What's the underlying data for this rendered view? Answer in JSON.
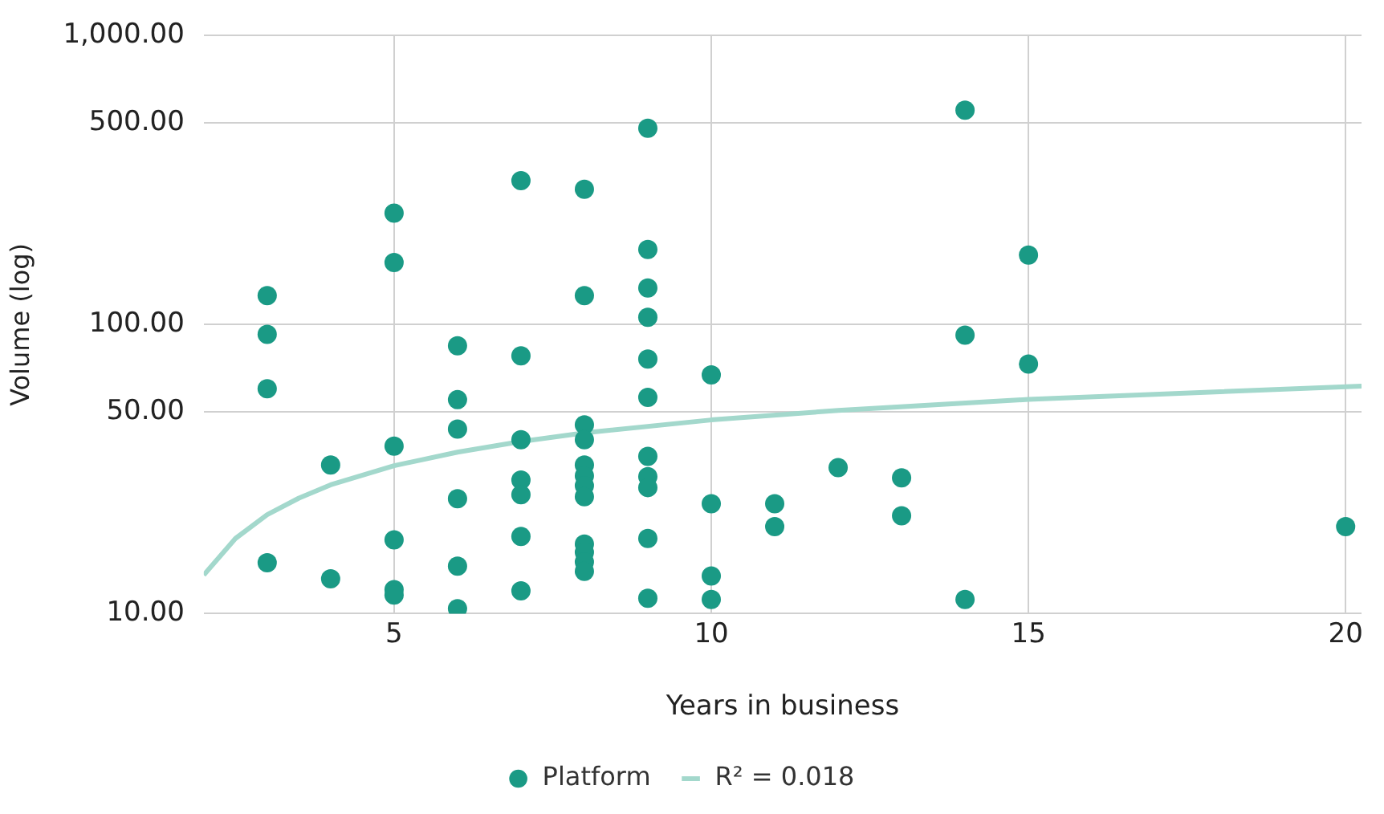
{
  "chart_data": {
    "type": "scatter",
    "xlabel": "Years in business",
    "ylabel": "Volume (log)",
    "log": "y",
    "grid": true,
    "legend": "bottom",
    "marker": "circle",
    "xlim": [
      2,
      20.25
    ],
    "xticks": [
      5,
      10,
      15,
      20
    ],
    "ylim": [
      10,
      1000
    ],
    "yticks": [
      {
        "value": 10,
        "label": "10.00"
      },
      {
        "value": 50,
        "label": "50.00"
      },
      {
        "value": 100,
        "label": "100.00"
      },
      {
        "value": 500,
        "label": "500.00"
      },
      {
        "value": 1000,
        "label": "1,000.00"
      }
    ],
    "series": [
      {
        "name": "Platform",
        "color": "#1a9a85",
        "x": [
          3,
          3,
          3,
          3,
          4,
          4,
          5,
          5,
          5,
          5,
          5,
          5,
          6,
          6,
          6,
          6,
          6,
          6,
          7,
          7,
          7,
          7,
          7,
          7,
          7,
          8,
          8,
          8,
          8,
          8,
          8,
          8,
          8,
          8,
          8,
          8,
          8,
          9,
          9,
          9,
          9,
          9,
          9,
          9,
          9,
          9,
          9,
          9,
          10,
          10,
          10,
          10,
          11,
          11,
          12,
          13,
          13,
          14,
          14,
          14,
          15,
          15,
          20
        ],
        "values": [
          126,
          92.5,
          60,
          15,
          32.7,
          13.2,
          243,
          164,
          38,
          18,
          12.1,
          11.6,
          84.5,
          55,
          43.5,
          25,
          14.6,
          10.4,
          315,
          78,
          40,
          29,
          25.8,
          18.5,
          12,
          294,
          126,
          45,
          40,
          32.7,
          30,
          27.7,
          25.4,
          17.4,
          16.3,
          15.1,
          14,
          478,
          182,
          134,
          106,
          76,
          56,
          35,
          29.8,
          27.3,
          18.2,
          11.3,
          67,
          24,
          13.5,
          11.2,
          24,
          20,
          32,
          29.5,
          21.8,
          552,
          92,
          11.2,
          174,
          73,
          20
        ]
      },
      {
        "name": "R² = 0.018",
        "type": "line",
        "marker": "none",
        "color": "#a3d8cc",
        "x": [
          2,
          2.5,
          3,
          3.5,
          4,
          5,
          6,
          7,
          8,
          10,
          12,
          15,
          20.25
        ],
        "values": [
          13.6,
          18.2,
          22,
          25.1,
          27.9,
          32.5,
          36.2,
          39.4,
          42.2,
          46.8,
          50.5,
          55.1,
          61.3
        ]
      }
    ]
  }
}
